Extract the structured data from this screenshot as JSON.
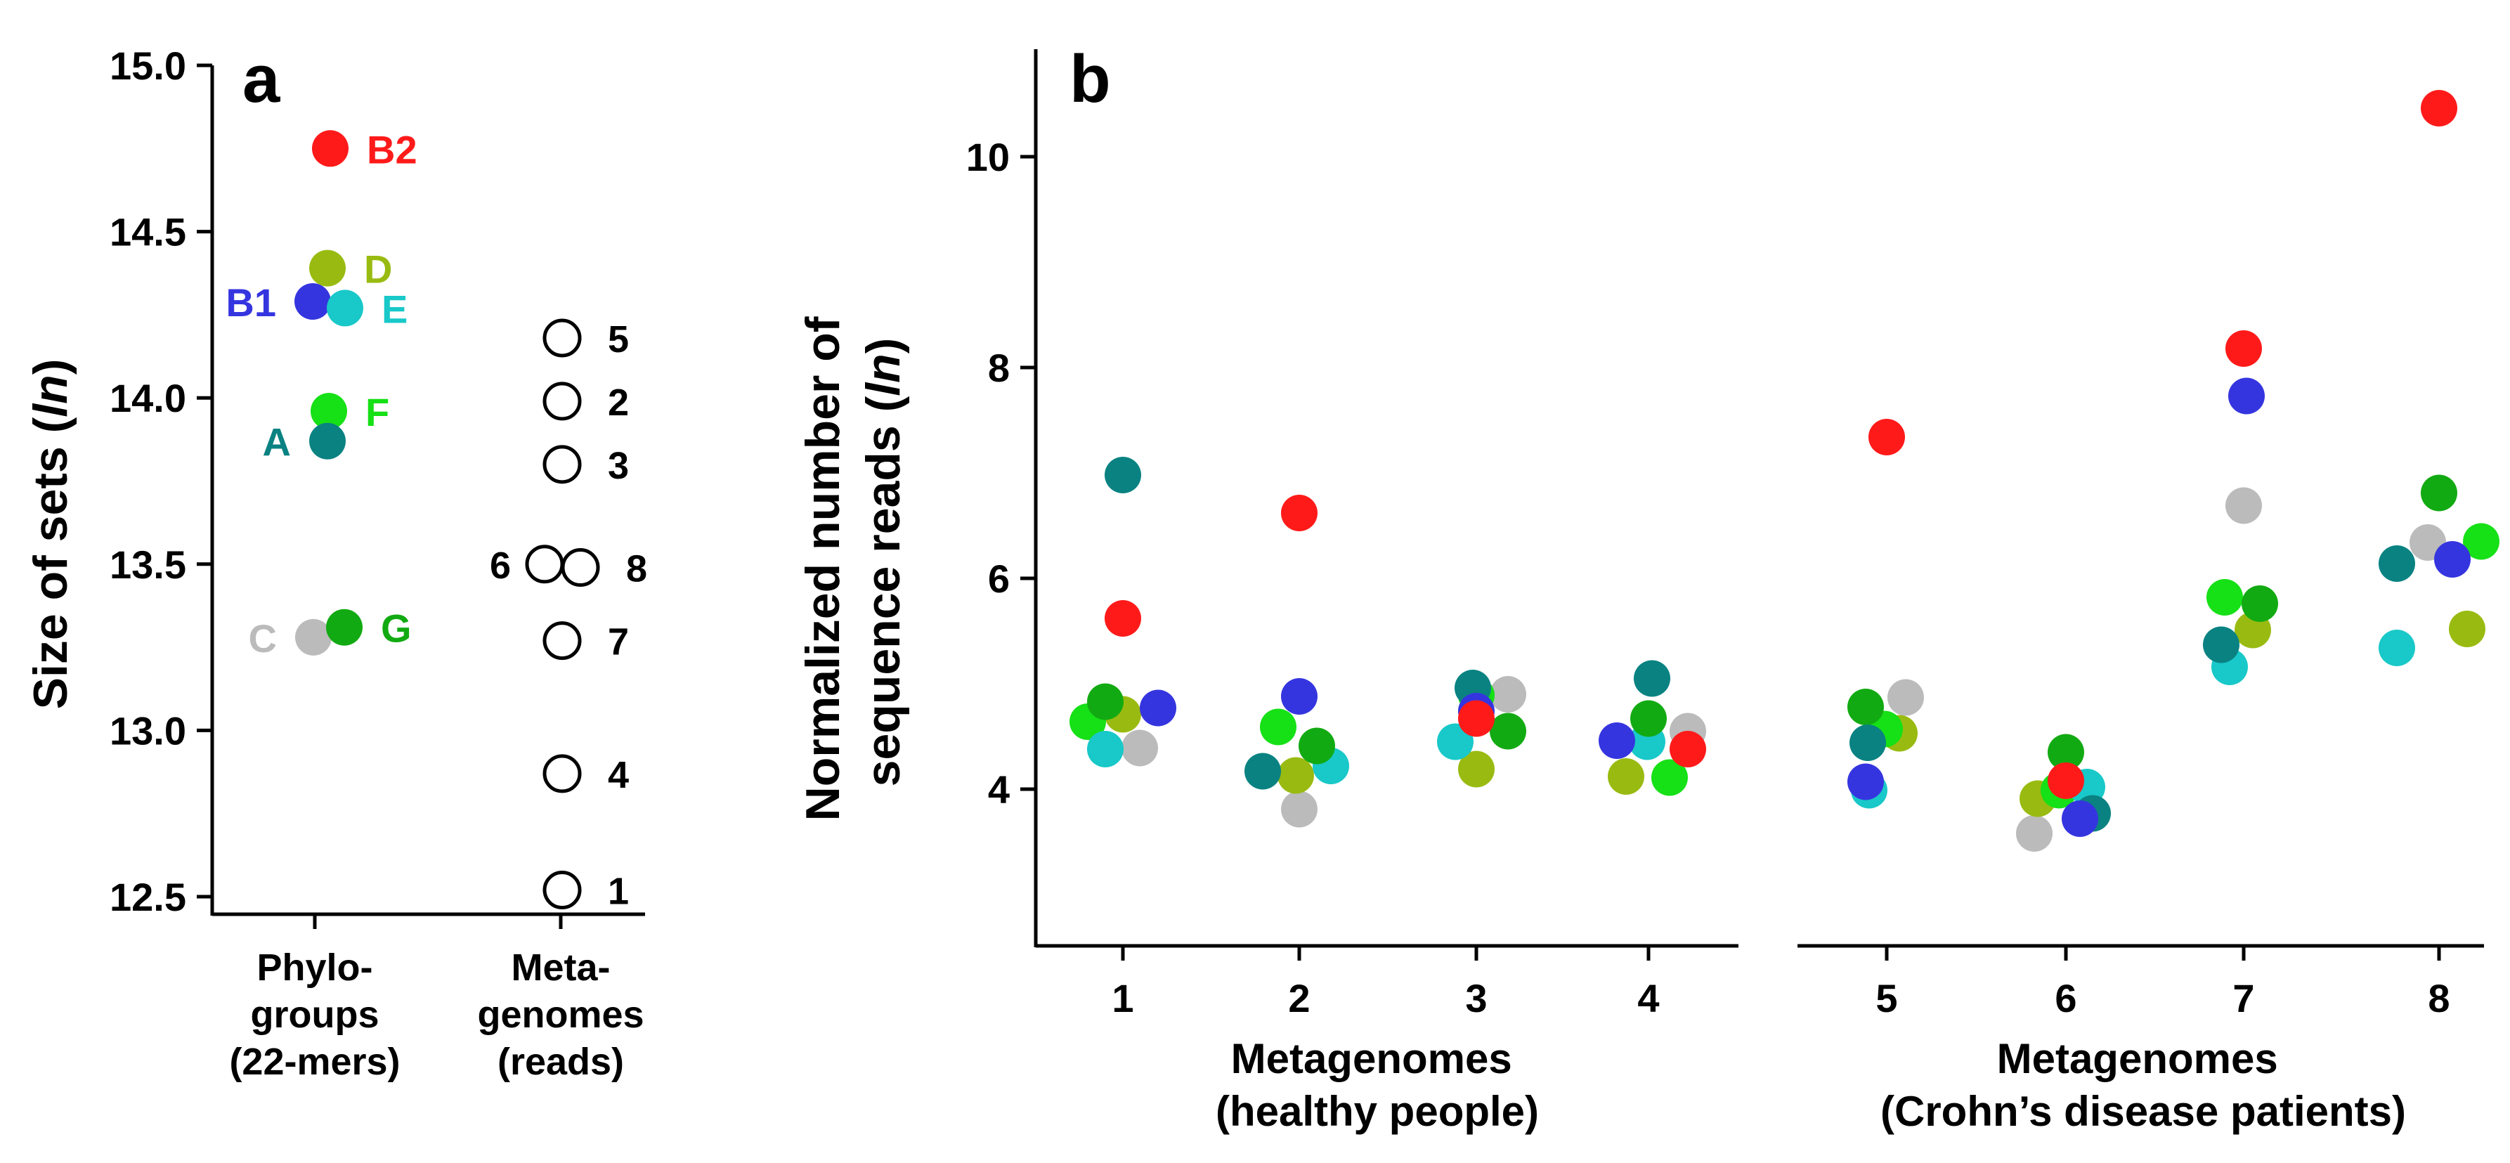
{
  "chart_data": [
    {
      "panel": "a",
      "type": "scatter",
      "ylabel_prefix": "Size of sets (",
      "ylabel_italic": "ln",
      "ylabel_suffix": ")",
      "ylim": [
        12.5,
        15.0
      ],
      "yticks": [
        "15.0",
        "14.5",
        "14.0",
        "13.5",
        "13.0",
        "12.5"
      ],
      "ytick_values": [
        15.0,
        14.5,
        14.0,
        13.5,
        13.0,
        12.5
      ],
      "categories": [
        {
          "lines": [
            "Phylo-",
            "groups",
            "(22-mers)"
          ]
        },
        {
          "lines": [
            "Meta-",
            "genomes",
            "(reads)"
          ]
        }
      ],
      "phylogroups": [
        {
          "label": "B2",
          "value": 14.75,
          "color": "#ff1a1a",
          "side": "right"
        },
        {
          "label": "D",
          "value": 14.39,
          "color": "#99bb11",
          "side": "right"
        },
        {
          "label": "B1",
          "value": 14.29,
          "color": "#3535e0",
          "side": "left"
        },
        {
          "label": "E",
          "value": 14.27,
          "color": "#19c8c8",
          "side": "right"
        },
        {
          "label": "F",
          "value": 13.96,
          "color": "#16e016",
          "side": "right"
        },
        {
          "label": "A",
          "value": 13.87,
          "color": "#0a8282",
          "side": "left"
        },
        {
          "label": "C",
          "value": 13.28,
          "color": "#bbbbbb",
          "side": "left"
        },
        {
          "label": "G",
          "value": 13.31,
          "color": "#12aa12",
          "side": "right"
        }
      ],
      "metagenomes": [
        {
          "label": "5",
          "value": 14.18
        },
        {
          "label": "2",
          "value": 13.99
        },
        {
          "label": "3",
          "value": 13.8
        },
        {
          "label": "6",
          "value": 13.5
        },
        {
          "label": "8",
          "value": 13.49
        },
        {
          "label": "7",
          "value": 13.27
        },
        {
          "label": "4",
          "value": 12.87
        },
        {
          "label": "1",
          "value": 12.52
        }
      ]
    },
    {
      "panel": "b",
      "type": "scatter",
      "ylabel_line1": "Normalized number of",
      "ylabel_line2_prefix": "sequence reads (",
      "ylabel_italic": "ln",
      "ylabel_suffix": ")",
      "ylim": [
        2.6,
        11.0
      ],
      "yticks": [
        "10",
        "8",
        "6",
        "4"
      ],
      "ytick_values": [
        10,
        8,
        6,
        4
      ],
      "x_categories": [
        "1",
        "2",
        "3",
        "4",
        "5",
        "6",
        "7",
        "8"
      ],
      "group_labels": [
        {
          "line1": "Metagenomes",
          "line2": "(healthy people)"
        },
        {
          "line1": "Metagenomes",
          "line2": "(Crohn’s disease patients)"
        }
      ],
      "series": [
        {
          "name": "A",
          "color": "#0a8282",
          "values": [
            6.98,
            4.17,
            4.96,
            5.05,
            4.44,
            3.77,
            5.37,
            6.14
          ]
        },
        {
          "name": "B1",
          "color": "#3535e0",
          "values": [
            4.77,
            4.88,
            4.74,
            4.46,
            4.07,
            3.72,
            7.73,
            6.18
          ]
        },
        {
          "name": "B2",
          "color": "#ff1a1a",
          "values": [
            5.62,
            6.62,
            4.67,
            4.38,
            7.34,
            4.08,
            8.18,
            10.46
          ]
        },
        {
          "name": "C",
          "color": "#bbbbbb",
          "values": [
            4.39,
            3.81,
            4.9,
            4.55,
            4.87,
            3.58,
            6.69,
            6.34
          ]
        },
        {
          "name": "D",
          "color": "#99bb11",
          "values": [
            4.71,
            4.13,
            4.19,
            4.12,
            4.53,
            3.91,
            5.51,
            5.52
          ]
        },
        {
          "name": "E",
          "color": "#19c8c8",
          "values": [
            4.38,
            4.22,
            4.45,
            4.45,
            3.99,
            4.02,
            5.16,
            5.34
          ]
        },
        {
          "name": "F",
          "color": "#16e016",
          "values": [
            4.64,
            4.59,
            4.89,
            4.11,
            4.57,
            3.99,
            5.82,
            6.35
          ]
        },
        {
          "name": "G",
          "color": "#12aa12",
          "values": [
            4.83,
            4.41,
            4.55,
            4.67,
            4.78,
            4.35,
            5.76,
            6.81
          ]
        }
      ]
    }
  ],
  "panel_labels": {
    "a": "a",
    "b": "b"
  }
}
